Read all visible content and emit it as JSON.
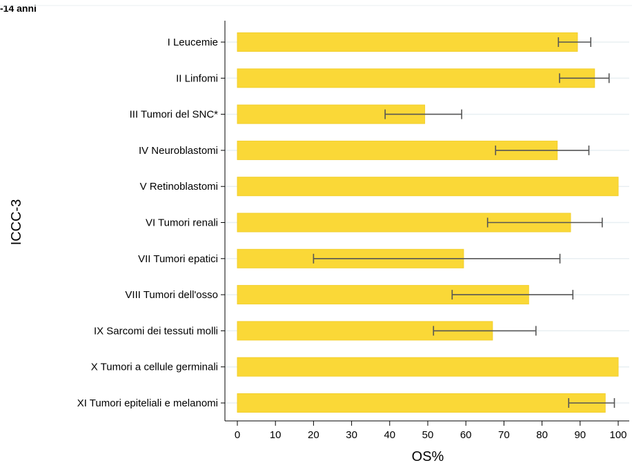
{
  "header": {
    "subtitle": "-14 anni"
  },
  "chart_data": {
    "type": "bar",
    "orientation": "horizontal",
    "title": "",
    "xlabel": "OS%",
    "ylabel": "ICCC-3",
    "xlim": [
      0,
      100
    ],
    "xticks": [
      0,
      10,
      20,
      30,
      40,
      50,
      60,
      70,
      80,
      90,
      100
    ],
    "grid": true,
    "categories": [
      "I Leucemie",
      "II Linfomi",
      "III Tumori del SNC*",
      "IV Neuroblastomi",
      "V Retinoblastomi",
      "VI Tumori renali",
      "VII Tumori epatici",
      "VIII Tumori dell'osso",
      "IX Sarcomi dei tessuti molli",
      "X Tumori a cellule germinali",
      "XI Tumori epiteliali e melanomi"
    ],
    "values": [
      89.3,
      93.8,
      49.2,
      84.0,
      100,
      87.5,
      59.4,
      76.5,
      67.0,
      100,
      96.6
    ],
    "ci_lower": [
      84.3,
      84.6,
      38.8,
      67.8,
      null,
      65.7,
      20.0,
      56.4,
      51.5,
      null,
      87.0
    ],
    "ci_upper": [
      92.8,
      97.6,
      58.9,
      92.3,
      null,
      95.8,
      84.7,
      88.1,
      78.4,
      null,
      99.0
    ],
    "colors": {
      "bar": "#fad837",
      "bar_edge": "#f2cf2c",
      "errorbar": "#555555",
      "grid": "#e8eff2",
      "axis": "#000000"
    }
  }
}
